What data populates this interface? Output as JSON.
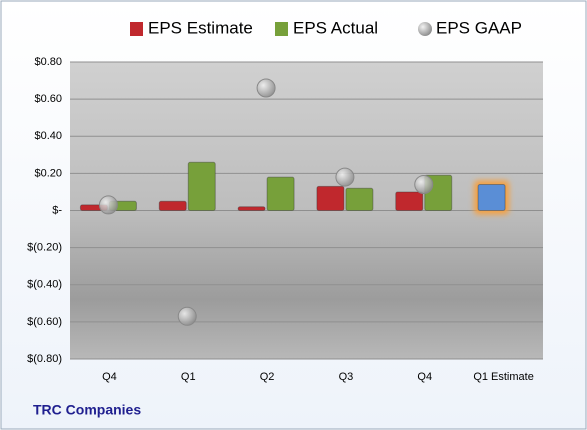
{
  "chart_data": {
    "type": "bar",
    "categories": [
      "Q4",
      "Q1",
      "Q2",
      "Q3",
      "Q4",
      "Q1 Estimate"
    ],
    "series": [
      {
        "name": "EPS Estimate",
        "color": "#c0282d",
        "colors": [
          "#c0282d",
          "#c0282d",
          "#c0282d",
          "#c0282d",
          "#c0282d",
          "#5a8ed6"
        ],
        "values": [
          0.03,
          0.05,
          0.02,
          0.13,
          0.1,
          0.14
        ]
      },
      {
        "name": "EPS Actual",
        "color": "#77a03a",
        "values": [
          0.05,
          0.26,
          0.18,
          0.12,
          0.19,
          null
        ]
      },
      {
        "name": "EPS GAAP",
        "color": "#b8b8b8",
        "type": "scatter",
        "values": [
          0.03,
          -0.57,
          0.66,
          0.18,
          0.14,
          null
        ]
      }
    ],
    "ylim": [
      -0.8,
      0.8
    ],
    "yticks": [
      {
        "value": 0.8,
        "label": "$0.80"
      },
      {
        "value": 0.6,
        "label": "$0.60"
      },
      {
        "value": 0.4,
        "label": "$0.40"
      },
      {
        "value": 0.2,
        "label": "$0.20"
      },
      {
        "value": 0,
        "label": "$-"
      },
      {
        "value": -0.2,
        "label": "$(0.20)"
      },
      {
        "value": -0.4,
        "label": "$(0.40)"
      },
      {
        "value": -0.6,
        "label": "$(0.60)"
      },
      {
        "value": -0.8,
        "label": "$(0.80)"
      }
    ],
    "grid": true,
    "legend": "top",
    "footer": "TRC Companies"
  }
}
